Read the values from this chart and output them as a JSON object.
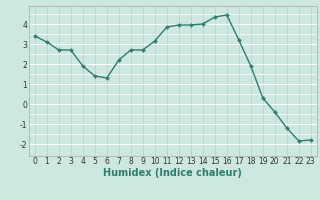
{
  "x": [
    0,
    1,
    2,
    3,
    4,
    5,
    6,
    7,
    8,
    9,
    10,
    11,
    12,
    13,
    14,
    15,
    16,
    17,
    18,
    19,
    20,
    21,
    22,
    23
  ],
  "y": [
    3.4,
    3.1,
    2.7,
    2.7,
    1.9,
    1.4,
    1.3,
    2.2,
    2.7,
    2.7,
    3.15,
    3.85,
    3.95,
    3.95,
    4.0,
    4.35,
    4.45,
    3.2,
    1.9,
    0.3,
    -0.4,
    -1.2,
    -1.85,
    -1.8
  ],
  "line_color": "#2e7d6e",
  "marker": "D",
  "marker_size": 2.0,
  "linewidth": 1.0,
  "xlabel": "Humidex (Indice chaleur)",
  "xlabel_fontsize": 7,
  "bg_color": "#cce8e0",
  "grid_color_white": "#ffffff",
  "grid_color_pink": "#e8b8b8",
  "xlim": [
    -0.5,
    23.5
  ],
  "ylim": [
    -2.6,
    4.9
  ],
  "yticks": [
    -2,
    -1,
    0,
    1,
    2,
    3,
    4
  ],
  "xticks": [
    0,
    1,
    2,
    3,
    4,
    5,
    6,
    7,
    8,
    9,
    10,
    11,
    12,
    13,
    14,
    15,
    16,
    17,
    18,
    19,
    20,
    21,
    22,
    23
  ],
  "tick_fontsize": 5.5
}
